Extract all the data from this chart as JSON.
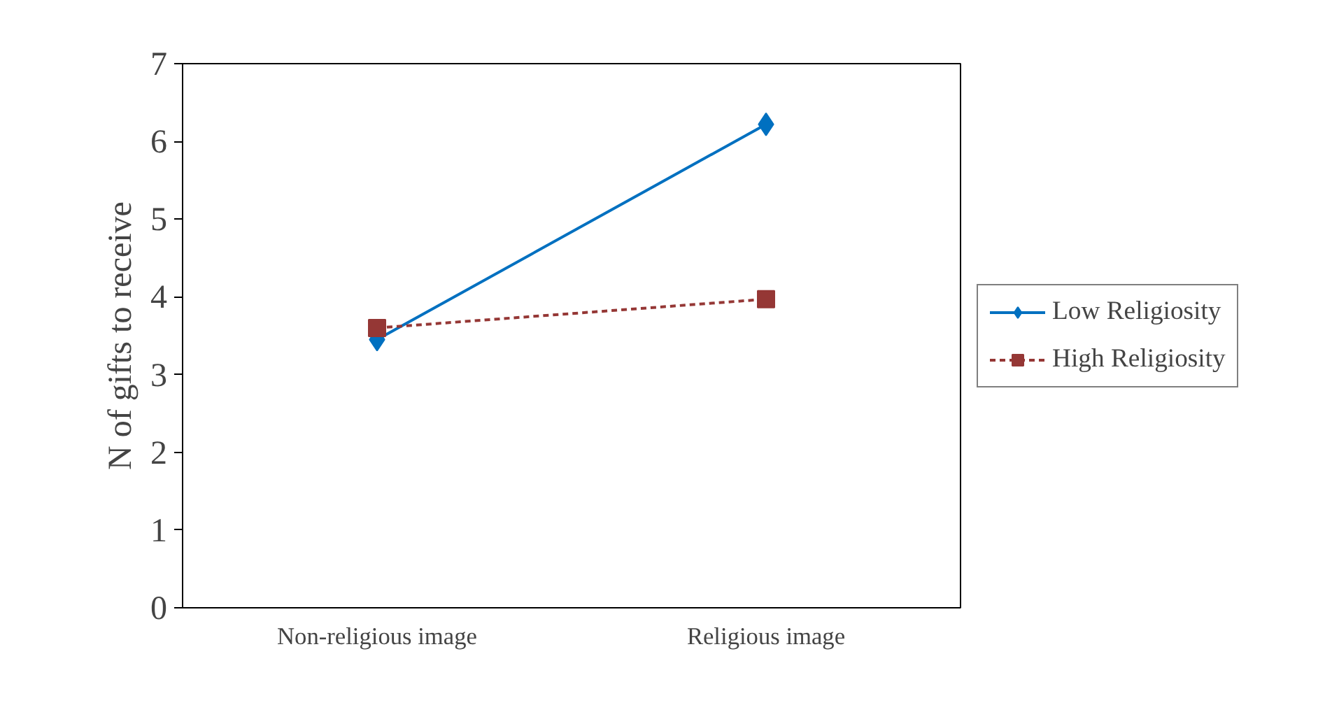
{
  "chart_data": {
    "type": "line",
    "ylabel": "N of gifts to receive",
    "categories": [
      "Non-religious image",
      "Religious image"
    ],
    "series": [
      {
        "name": "Low Religiosity",
        "color": "#0070c0",
        "values": [
          3.45,
          6.22
        ],
        "marker": "diamond",
        "line_style": "solid"
      },
      {
        "name": "High Religiosity",
        "color": "#953735",
        "values": [
          3.6,
          3.97
        ],
        "marker": "square",
        "line_style": "dashed"
      }
    ],
    "ylim": [
      0,
      7
    ],
    "yticks": [
      0,
      1,
      2,
      3,
      4,
      5,
      6,
      7
    ],
    "grid": false,
    "legend": "right"
  }
}
